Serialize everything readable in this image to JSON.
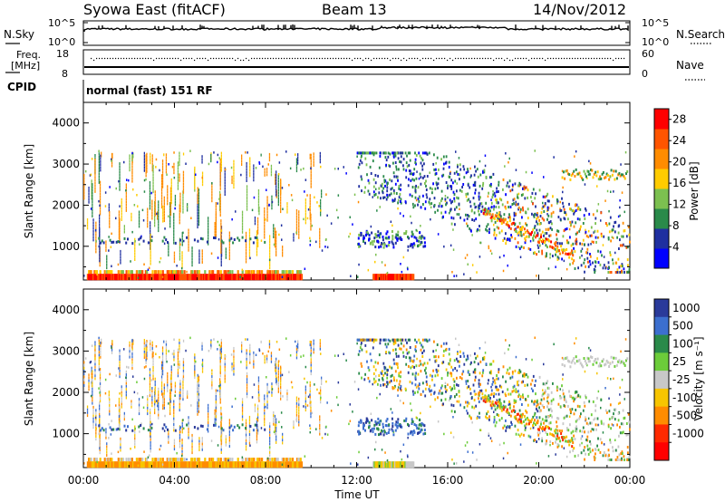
{
  "header": {
    "station": "Syowa East (fitACF)",
    "beam": "Beam 13",
    "date": "14/Nov/2012"
  },
  "noise_panel": {
    "left_label": "N.Sky",
    "left_ticks": [
      "10^5",
      "10^0"
    ],
    "right_label": "N.Search",
    "right_ticks": [
      "10^5",
      "10^0"
    ]
  },
  "freq_panel": {
    "left_label_1": "Freq.",
    "left_label_2": "[MHz]",
    "left_ticks": [
      "18",
      "8"
    ],
    "right_label": "Nave",
    "right_ticks": [
      "60",
      "0"
    ]
  },
  "cpid": {
    "label": "CPID",
    "mode": "normal (fast) 151 RF"
  },
  "colors": {
    "power": [
      "#0000ff",
      "#1f2fa0",
      "#2a8a4a",
      "#7cc050",
      "#ffcc00",
      "#ff8c00",
      "#ff5500",
      "#ff0000"
    ],
    "velocity": [
      "#2a3a9a",
      "#3c6fcf",
      "#2a8a4a",
      "#6ccc3a",
      "#c8c8c8",
      "#f7c500",
      "#ff8c00",
      "#ff2a00",
      "#ff0000"
    ]
  },
  "chart_data": [
    {
      "type": "heatmap",
      "title": "Power",
      "xlabel": "",
      "ylabel": "Slant Range [km]",
      "x_ticks": [
        "00:00",
        "04:00",
        "08:00",
        "12:00",
        "16:00",
        "20:00",
        "00:00"
      ],
      "y_ticks": [
        "1000",
        "2000",
        "3000",
        "4000"
      ],
      "ylim": [
        180,
        4500
      ],
      "colorbar": {
        "label": "Power [dB]",
        "ticks": [
          "4",
          "8",
          "12",
          "16",
          "20",
          "24",
          "28"
        ],
        "range": [
          0,
          30
        ]
      }
    },
    {
      "type": "heatmap",
      "title": "Velocity",
      "xlabel": "Time UT",
      "ylabel": "Slant Range [km]",
      "x_ticks": [
        "00:00",
        "04:00",
        "08:00",
        "12:00",
        "16:00",
        "20:00",
        "00:00"
      ],
      "y_ticks": [
        "1000",
        "2000",
        "3000",
        "4000"
      ],
      "ylim": [
        180,
        4500
      ],
      "colorbar": {
        "label": "Velocity [m s⁻¹]",
        "ticks": [
          "1000",
          "500",
          "100",
          "25",
          "-25",
          "-100",
          "-500",
          "-1000"
        ]
      }
    }
  ]
}
